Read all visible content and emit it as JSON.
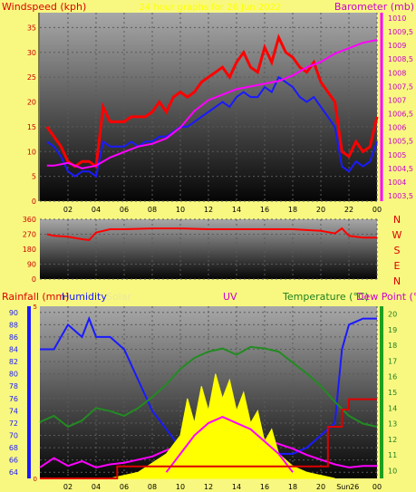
{
  "header": {
    "windspeed_label": "Windspeed (kph)",
    "title": "24 hour graphs for 26 Jun 2022",
    "barometer_label": "Barometer (mb)"
  },
  "colors": {
    "background": "#f8f880",
    "plot_top": "#a8a8a8",
    "plot_bottom": "#050505",
    "wind": "#ff0000",
    "gust_avg": "#1a1aff",
    "baro": "#ff00ff",
    "temp": "#228b22",
    "dew": "#ff00ff",
    "humidity": "#1a1aff",
    "solar": "#ffff00",
    "uv": "#ff00ff",
    "rain": "#dd0000"
  },
  "chart_data": [
    {
      "type": "line",
      "name": "wind-and-barometer",
      "x_ticks": [
        "02",
        "04",
        "06",
        "08",
        "10",
        "12",
        "14",
        "16",
        "18",
        "20",
        "22",
        "00"
      ],
      "y_left": {
        "label": "Windspeed (kph)",
        "ticks": [
          0,
          5,
          10,
          15,
          20,
          25,
          30,
          35
        ],
        "ylim": [
          0,
          38
        ]
      },
      "y_right": {
        "label": "Barometer (mb)",
        "ticks": [
          "1003,5",
          "1004",
          "1004,5",
          "1005",
          "1005,5",
          "1006",
          "1006,5",
          "1007",
          "1007,5",
          "1008",
          "1008,5",
          "1009",
          "1009,5",
          "1010"
        ],
        "ylim": [
          1003.3,
          1010.2
        ]
      },
      "series": [
        {
          "color": "#ff0000",
          "axis": "left",
          "x": [
            0.5,
            1,
            1.5,
            2,
            2.5,
            3,
            3.5,
            4,
            4.5,
            5,
            5.5,
            6,
            6.5,
            7,
            7.5,
            8,
            8.5,
            9,
            9.5,
            10,
            10.5,
            11,
            11.5,
            12,
            12.5,
            13,
            13.5,
            14,
            14.5,
            15,
            15.5,
            16,
            16.5,
            17,
            17.5,
            18,
            18.5,
            19,
            19.5,
            20,
            20.5,
            21,
            21.5,
            22,
            22.5,
            23,
            23.5,
            24
          ],
          "y": [
            15,
            13,
            11,
            8,
            7,
            8,
            8,
            7,
            19,
            16,
            16,
            16,
            17,
            17,
            17,
            18,
            20,
            18,
            21,
            22,
            21,
            22,
            24,
            25,
            26,
            27,
            25,
            28,
            30,
            27,
            26,
            31,
            28,
            33,
            30,
            29,
            27,
            26,
            28,
            24,
            22,
            20,
            10,
            9,
            12,
            10,
            11,
            17
          ]
        },
        {
          "color": "#1a1aff",
          "axis": "left",
          "x": [
            0.5,
            1,
            1.5,
            2,
            2.5,
            3,
            3.5,
            4,
            4.5,
            5,
            5.5,
            6,
            6.5,
            7,
            7.5,
            8,
            8.5,
            9,
            9.5,
            10,
            10.5,
            11,
            11.5,
            12,
            12.5,
            13,
            13.5,
            14,
            14.5,
            15,
            15.5,
            16,
            16.5,
            17,
            17.5,
            18,
            18.5,
            19,
            19.5,
            20,
            20.5,
            21,
            21.5,
            22,
            22.5,
            23,
            23.5,
            24
          ],
          "y": [
            12,
            11,
            9,
            6,
            5,
            6,
            6,
            5,
            12,
            11,
            11,
            11,
            12,
            11,
            12,
            12,
            13,
            13,
            14,
            15,
            15,
            16,
            17,
            18,
            19,
            20,
            19,
            21,
            22,
            21,
            21,
            23,
            22,
            25,
            24,
            23,
            21,
            20,
            21,
            19,
            17,
            15,
            7,
            6,
            8,
            7,
            8,
            12
          ]
        },
        {
          "color": "#ff00ff",
          "axis": "right",
          "x": [
            0.5,
            1,
            2,
            3,
            4,
            5,
            6,
            7,
            8,
            9,
            10,
            11,
            12,
            13,
            14,
            15,
            16,
            17,
            18,
            19,
            20,
            21,
            22,
            23,
            24
          ],
          "y": [
            1004.6,
            1004.6,
            1004.7,
            1004.5,
            1004.6,
            1004.9,
            1005.1,
            1005.3,
            1005.4,
            1005.6,
            1006.0,
            1006.6,
            1007.0,
            1007.2,
            1007.4,
            1007.5,
            1007.6,
            1007.7,
            1007.9,
            1008.2,
            1008.4,
            1008.7,
            1008.9,
            1009.1,
            1009.2
          ]
        }
      ]
    },
    {
      "type": "line",
      "name": "wind-direction",
      "x_ticks": [
        "02",
        "04",
        "06",
        "08",
        "10",
        "12",
        "14",
        "16",
        "18",
        "20",
        "22",
        "00"
      ],
      "y_left": {
        "ticks": [
          0,
          90,
          180,
          270,
          360
        ],
        "ylim": [
          0,
          360
        ]
      },
      "y_right": {
        "labels": [
          "N",
          "W",
          "S",
          "E",
          "N"
        ]
      },
      "series": [
        {
          "color": "#ff0000",
          "x": [
            0.5,
            1,
            2,
            3,
            3.5,
            4,
            5,
            6,
            8,
            10,
            12,
            14,
            16,
            18,
            19,
            20,
            21,
            21.5,
            22,
            23,
            24
          ],
          "y": [
            270,
            260,
            255,
            240,
            235,
            280,
            300,
            300,
            305,
            305,
            300,
            300,
            300,
            300,
            295,
            290,
            275,
            305,
            260,
            250,
            250
          ]
        }
      ]
    },
    {
      "type": "line",
      "name": "rain-humidity-solar-uv-temp",
      "header_labels": {
        "rainfall": "Rainfall (mm)",
        "humidity": "Humidity",
        "solar": "Solar",
        "uv": "UV",
        "temperature": "Temperature (°C)",
        "dew_point": "Dew Point (°C"
      },
      "x_ticks": [
        "02",
        "04",
        "06",
        "08",
        "10",
        "12",
        "14",
        "16",
        "18",
        "20",
        "Sun",
        "26",
        "00"
      ],
      "y_humidity": {
        "ticks": [
          64,
          66,
          68,
          70,
          72,
          74,
          76,
          78,
          80,
          82,
          84,
          86,
          88,
          90
        ],
        "ylim": [
          63,
          91
        ]
      },
      "y_rain_left": {
        "ticks": [
          0,
          5
        ],
        "ylim": [
          0,
          5
        ]
      },
      "y_temp_right": {
        "ticks": [
          10,
          11,
          12,
          13,
          14,
          15,
          16,
          17,
          18,
          19,
          20
        ],
        "ylim": [
          9.5,
          20.5
        ]
      },
      "series": [
        {
          "name": "Humidity",
          "color": "#1a1aff",
          "axis": "humidity",
          "x": [
            0,
            1,
            2,
            3,
            3.5,
            4,
            5,
            6,
            7,
            8,
            9,
            10,
            11,
            12,
            13,
            14,
            15,
            16,
            17,
            18,
            19,
            20,
            21,
            21.5,
            22,
            23,
            24
          ],
          "y": [
            84,
            84,
            88,
            86,
            89,
            86,
            86,
            84,
            79,
            74,
            71,
            68,
            67,
            66,
            66,
            65,
            65,
            66,
            67,
            67,
            68,
            70,
            72,
            84,
            88,
            89,
            89
          ]
        },
        {
          "name": "Temperature (°C)",
          "color": "#228b22",
          "axis": "temp",
          "x": [
            0,
            1,
            2,
            3,
            4,
            5,
            6,
            7,
            8,
            9,
            10,
            11,
            12,
            13,
            14,
            15,
            16,
            17,
            18,
            19,
            20,
            21,
            22,
            23,
            24
          ],
          "y": [
            13.1,
            13.5,
            12.8,
            13.2,
            14.0,
            13.8,
            13.5,
            14.0,
            14.7,
            15.5,
            16.5,
            17.2,
            17.6,
            17.8,
            17.4,
            17.9,
            17.8,
            17.6,
            16.9,
            16.2,
            15.4,
            14.4,
            13.5,
            13.0,
            12.8
          ]
        },
        {
          "name": "Dew Point (°C",
          "color": "#ff00ff",
          "axis": "temp",
          "x": [
            0,
            1,
            2,
            3,
            4,
            5,
            6,
            7,
            8,
            9,
            10,
            11,
            12,
            13,
            14,
            15,
            16,
            17,
            18,
            19,
            20,
            21,
            22,
            23,
            24
          ],
          "y": [
            10.2,
            10.8,
            10.3,
            10.6,
            10.2,
            10.4,
            10.5,
            10.7,
            10.9,
            11.3,
            11.6,
            11.9,
            12.1,
            12.0,
            11.9,
            12.2,
            12.0,
            11.7,
            11.4,
            11.0,
            10.7,
            10.4,
            10.2,
            10.3,
            10.3
          ]
        },
        {
          "name": "Solar",
          "color": "#ffff00",
          "axis": "humidity",
          "x": [
            5,
            6,
            7,
            8,
            9,
            10,
            10.5,
            11,
            11.5,
            12,
            12.5,
            13,
            13.5,
            14,
            14.5,
            15,
            15.5,
            16,
            16.5,
            17,
            18,
            19,
            20,
            21
          ],
          "y": [
            63,
            63.5,
            64,
            65.5,
            67,
            70,
            76,
            72,
            78,
            74,
            80,
            76,
            79,
            74,
            77,
            72,
            74,
            69,
            71,
            67,
            65,
            64,
            63.5,
            63
          ]
        },
        {
          "name": "UV",
          "color": "#ff00ff",
          "axis": "humidity",
          "x": [
            9,
            10,
            11,
            12,
            13,
            14,
            15,
            16,
            17,
            18
          ],
          "y": [
            64,
            67,
            70,
            72,
            73,
            72,
            71,
            69,
            67,
            64
          ]
        },
        {
          "name": "Rainfall (mm)",
          "color": "#dd0000",
          "axis": "rain",
          "x": [
            0,
            5.5,
            5.5,
            20.5,
            20.5,
            21.5,
            21.5,
            22,
            22,
            24
          ],
          "y": [
            0,
            0,
            0.35,
            0.35,
            1.5,
            1.5,
            2.0,
            2.0,
            2.3,
            2.3
          ]
        }
      ]
    }
  ]
}
